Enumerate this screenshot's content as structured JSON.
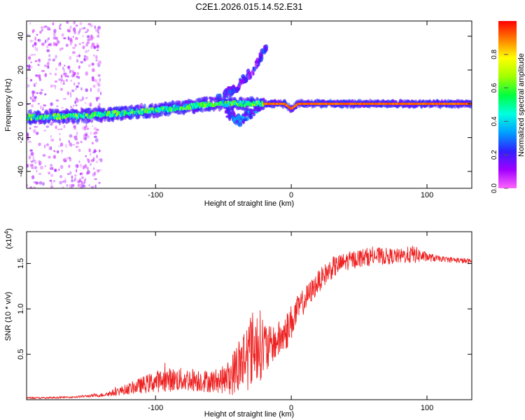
{
  "figure_title": "C2E1.2026.015.14.52.E31",
  "colors": {
    "snr_line": "#ee2222",
    "axis": "#000000",
    "background": "#ffffff"
  },
  "chart_data": [
    {
      "type": "heatmap",
      "title": "C2E1.2026.015.14.52.E31",
      "xlabel": "Height of straight line (km)",
      "ylabel": "Frequency (Hz)",
      "xlim": [
        -195,
        133
      ],
      "ylim": [
        -50,
        49
      ],
      "x_ticks": [
        -100,
        0,
        100
      ],
      "x_tick_labels": [
        "-100",
        "0",
        "100"
      ],
      "y_ticks": [
        -40,
        -20,
        0,
        20,
        40
      ],
      "y_tick_labels": [
        "-40",
        "-20",
        "0",
        "20",
        "40"
      ],
      "colorbar": {
        "label": "Normalized spectral amplitude",
        "range": [
          0,
          1
        ],
        "ticks": [
          0.0,
          0.2,
          0.4,
          0.6,
          0.8
        ],
        "tick_labels": [
          "0.0",
          "0.2",
          "0.4",
          "0.6",
          "0.8"
        ],
        "colormap": [
          "#ff66ff",
          "#a000ff",
          "#3020ff",
          "#00a0ff",
          "#00ffe0",
          "#00ff40",
          "#a0ff00",
          "#ffff00",
          "#ff8000",
          "#ff0000"
        ]
      },
      "features": [
        {
          "name": "scattered noise",
          "x_range": [
            -195,
            -140
          ],
          "freq_range": [
            -50,
            49
          ],
          "amplitude": 0.08
        },
        {
          "name": "main ridge",
          "points": [
            [
              -195,
              -8
            ],
            [
              -150,
              -7
            ],
            [
              -100,
              -4
            ],
            [
              -60,
              0
            ],
            [
              -25,
              0
            ],
            [
              -5,
              0
            ],
            [
              0,
              -3
            ],
            [
              5,
              0
            ],
            [
              133,
              0
            ]
          ],
          "amplitude_range": [
            0.3,
            0.95
          ]
        },
        {
          "name": "upper branch",
          "points": [
            [
              -55,
              2
            ],
            [
              -40,
              10
            ],
            [
              -28,
              20
            ],
            [
              -18,
              34
            ]
          ],
          "amplitude": 0.15
        },
        {
          "name": "lower branch",
          "points": [
            [
              -48,
              -5
            ],
            [
              -38,
              -10
            ],
            [
              -30,
              -6
            ],
            [
              -22,
              0
            ]
          ],
          "amplitude": 0.2
        }
      ]
    },
    {
      "type": "line",
      "xlabel": "Height of straight line (km)",
      "ylabel": "SNR (10 * v/v)",
      "y_multiplier_label": "(x10",
      "y_multiplier_exp": "4",
      "xlim": [
        -195,
        133
      ],
      "ylim": [
        0,
        1.85
      ],
      "x_ticks": [
        -100,
        0,
        100
      ],
      "x_tick_labels": [
        "-100",
        "0",
        "100"
      ],
      "y_ticks": [
        0.5,
        1.0,
        1.5
      ],
      "y_tick_labels": [
        "0.5",
        "1.0",
        "1.5"
      ],
      "series": [
        {
          "name": "SNR",
          "color": "#ee2222",
          "x": [
            -195,
            -180,
            -160,
            -140,
            -130,
            -120,
            -110,
            -100,
            -90,
            -80,
            -70,
            -60,
            -50,
            -45,
            -40,
            -35,
            -30,
            -25,
            -20,
            -18,
            -15,
            -10,
            -5,
            0,
            5,
            10,
            15,
            20,
            25,
            30,
            40,
            50,
            60,
            70,
            80,
            90,
            100,
            110,
            120,
            133
          ],
          "values": [
            0.02,
            0.02,
            0.03,
            0.05,
            0.08,
            0.12,
            0.16,
            0.2,
            0.22,
            0.22,
            0.22,
            0.2,
            0.22,
            0.25,
            0.35,
            0.45,
            0.55,
            0.62,
            0.58,
            0.55,
            0.6,
            0.65,
            0.72,
            0.85,
            1.0,
            1.1,
            1.2,
            1.3,
            1.38,
            1.45,
            1.52,
            1.56,
            1.58,
            1.58,
            1.58,
            1.6,
            1.57,
            1.55,
            1.54,
            1.52
          ],
          "noise": [
            0.01,
            0.01,
            0.01,
            0.02,
            0.04,
            0.06,
            0.09,
            0.12,
            0.13,
            0.13,
            0.13,
            0.12,
            0.15,
            0.2,
            0.3,
            0.38,
            0.42,
            0.42,
            0.35,
            0.3,
            0.2,
            0.2,
            0.22,
            0.2,
            0.15,
            0.14,
            0.13,
            0.12,
            0.12,
            0.12,
            0.1,
            0.1,
            0.1,
            0.09,
            0.08,
            0.1,
            0.05,
            0.03,
            0.03,
            0.03
          ]
        }
      ]
    }
  ]
}
